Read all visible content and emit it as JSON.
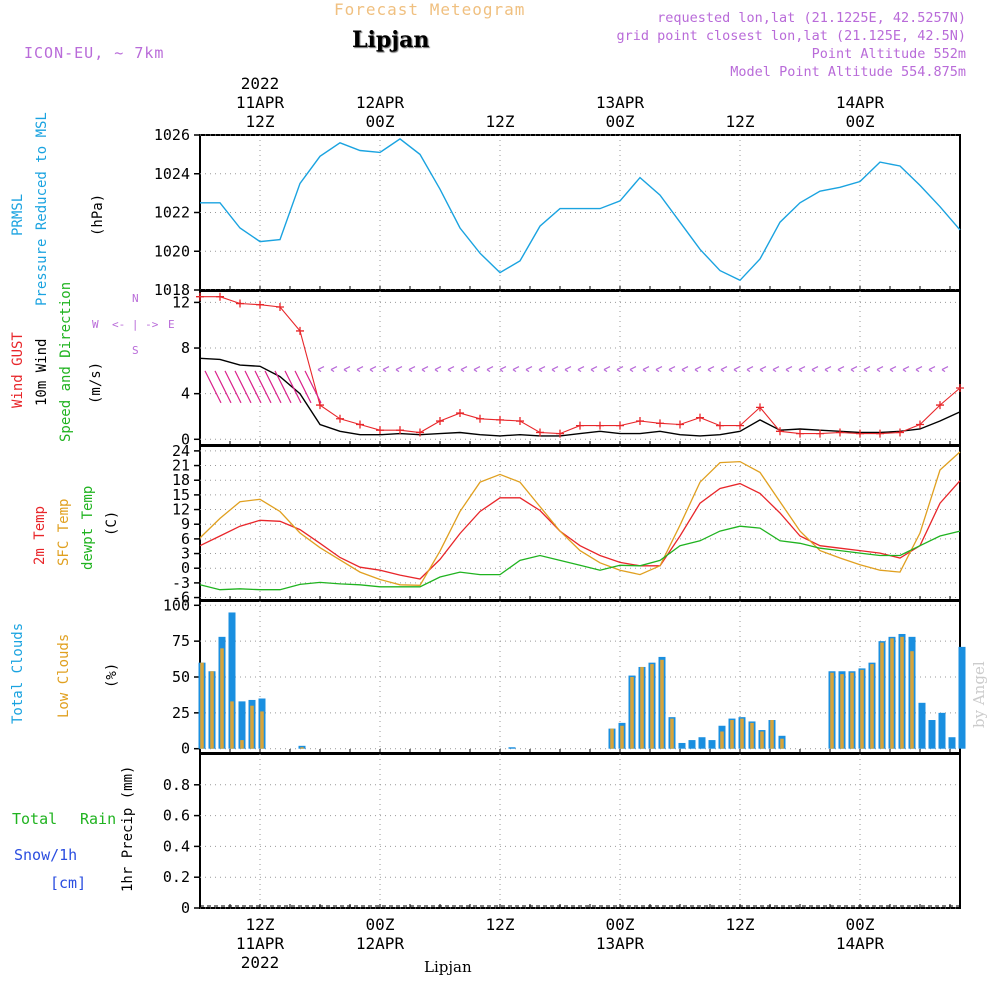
{
  "header": {
    "model": "ICON-EU, ~ 7km",
    "title": "Forecast Meteogram",
    "location": "Lipjan",
    "requested": "requested lon,lat (21.1225E, 42.5257N)",
    "gridpoint": "grid point closest lon,lat (21.125E, 42.5N)",
    "point_alt": "Point Altitude 552m",
    "model_alt": "Model Point Altitude 554.875m",
    "footer_location": "Lipjan",
    "watermark": "by Angel"
  },
  "time_axis": {
    "top": [
      "2022\n11APR\n12Z",
      "12APR\n00Z",
      "12Z",
      "13APR\n00Z",
      "12Z",
      "14APR\n00Z"
    ],
    "bottom": [
      "12Z\n11APR\n2022",
      "00Z\n12APR",
      "12Z",
      "00Z\n13APR",
      "12Z",
      "00Z\n14APR"
    ],
    "ticks_hours": [
      12,
      24,
      36,
      48,
      60,
      72
    ],
    "range_hours": [
      6,
      82
    ]
  },
  "panel_labels": {
    "pressure": [
      "PRMSL",
      "Pressure Reduced to MSL",
      "(hPa)"
    ],
    "wind": [
      "Wind GUST",
      "10m Wind",
      "Speed and Direction",
      "(m/s)"
    ],
    "compass": {
      "n": "N",
      "s": "S",
      "w": "W",
      "e": "E",
      "arrow": "<- | ->"
    },
    "temp": [
      "2m Temp",
      "SFC Temp",
      "dewpt Temp",
      "(C)"
    ],
    "cloud": [
      "Total Clouds",
      "Low Clouds",
      "(%)"
    ],
    "precip": [
      "Total",
      "Rain",
      "Snow/1h",
      "[cm]",
      "1hr Precip (mm)"
    ]
  },
  "colors": {
    "pressure": "#1aa3e0",
    "gust": "#e8262a",
    "wind10m": "#000000",
    "temp2m": "#e8262a",
    "tempsfc": "#e0a020",
    "dewpt": "#20b320",
    "total_clouds": "#1a8fe0",
    "low_clouds": "#d9a53a",
    "purple": "#b96bd9"
  },
  "chart_data": [
    {
      "type": "line",
      "name": "pressure",
      "title": "PRMSL Pressure Reduced to MSL",
      "ylabel": "(hPa)",
      "ylim": [
        1018,
        1026
      ],
      "yticks": [
        1018,
        1020,
        1022,
        1024,
        1026
      ],
      "x": [
        6,
        8,
        10,
        12,
        14,
        16,
        18,
        20,
        22,
        24,
        26,
        28,
        30,
        32,
        34,
        36,
        38,
        40,
        42,
        44,
        46,
        48,
        50,
        52,
        54,
        56,
        58,
        60,
        62,
        64,
        66,
        68,
        70,
        72,
        74,
        76,
        78,
        80,
        82
      ],
      "series": [
        {
          "name": "PRMSL",
          "values": [
            1022.5,
            1022.5,
            1021.2,
            1020.5,
            1020.6,
            1023.5,
            1024.9,
            1025.6,
            1025.2,
            1025.1,
            1025.8,
            1025,
            1023.2,
            1021.2,
            1019.9,
            1018.9,
            1019.5,
            1021.3,
            1022.2,
            1022.2,
            1022.2,
            1022.6,
            1023.8,
            1022.9,
            1021.5,
            1020.1,
            1019,
            1018.5,
            1019.6,
            1021.5,
            1022.5,
            1023.1,
            1023.3,
            1023.6,
            1024.6,
            1024.4,
            1023.4,
            1022.3,
            1021.1
          ]
        }
      ]
    },
    {
      "type": "line",
      "name": "wind",
      "title": "Wind GUST / 10m Wind",
      "ylabel": "(m/s)",
      "ylim": [
        -0.5,
        13
      ],
      "yticks": [
        0,
        4,
        8,
        12
      ],
      "x": [
        6,
        8,
        10,
        12,
        14,
        16,
        18,
        20,
        22,
        24,
        26,
        28,
        30,
        32,
        34,
        36,
        38,
        40,
        42,
        44,
        46,
        48,
        50,
        52,
        54,
        56,
        58,
        60,
        62,
        64,
        66,
        68,
        70,
        72,
        74,
        76,
        78,
        80,
        82
      ],
      "series": [
        {
          "name": "Wind GUST",
          "values": [
            12.5,
            12.5,
            11.9,
            11.8,
            11.6,
            9.5,
            3,
            1.8,
            1.3,
            0.8,
            0.8,
            0.6,
            1.6,
            2.3,
            1.8,
            1.7,
            1.6,
            0.6,
            0.5,
            1.2,
            1.2,
            1.2,
            1.6,
            1.4,
            1.3,
            1.9,
            1.2,
            1.2,
            2.8,
            0.7,
            0.5,
            0.5,
            0.6,
            0.5,
            0.5,
            0.6,
            1.3,
            3,
            4.5
          ]
        },
        {
          "name": "10m Wind",
          "values": [
            7.1,
            7,
            6.5,
            6.4,
            5.5,
            4,
            1.3,
            0.7,
            0.4,
            0.4,
            0.5,
            0.4,
            0.5,
            0.6,
            0.4,
            0.3,
            0.4,
            0.3,
            0.3,
            0.5,
            0.7,
            0.5,
            0.5,
            0.7,
            0.4,
            0.3,
            0.4,
            0.7,
            1.7,
            0.8,
            0.9,
            0.8,
            0.7,
            0.6,
            0.6,
            0.7,
            0.9,
            1.6,
            2.4
          ]
        }
      ]
    },
    {
      "type": "line",
      "name": "temperature",
      "title": "2m Temp / SFC Temp / dewpt Temp",
      "ylabel": "(C)",
      "ylim": [
        -6.5,
        25
      ],
      "yticks": [
        -6,
        -3,
        0,
        3,
        6,
        9,
        12,
        15,
        18,
        21,
        24
      ],
      "x": [
        6,
        8,
        10,
        12,
        14,
        16,
        18,
        20,
        22,
        24,
        26,
        28,
        30,
        32,
        34,
        36,
        38,
        40,
        42,
        44,
        46,
        48,
        50,
        52,
        54,
        56,
        58,
        60,
        62,
        64,
        66,
        68,
        70,
        72,
        74,
        76,
        78,
        80,
        82
      ],
      "series": [
        {
          "name": "2m Temp",
          "values": [
            4.6,
            6.6,
            8.6,
            9.8,
            9.6,
            7.9,
            5.1,
            2.2,
            0.2,
            -0.4,
            -1.4,
            -2.2,
            1.8,
            7.1,
            11.6,
            14.4,
            14.4,
            11.8,
            7.6,
            4.6,
            2.6,
            1.2,
            0.5,
            0.5,
            6.6,
            13.3,
            16.3,
            17.3,
            15.3,
            11.3,
            6.6,
            4.6,
            4.1,
            3.6,
            3.1,
            2.1,
            4.6,
            13.3,
            17.9
          ]
        },
        {
          "name": "SFC Temp",
          "values": [
            6.2,
            10.2,
            13.6,
            14.1,
            11.6,
            7.2,
            4.2,
            1.7,
            -0.8,
            -2.3,
            -3.4,
            -3.5,
            3.5,
            11.6,
            17.6,
            19.2,
            17.6,
            12.6,
            7.6,
            3.6,
            1.1,
            -0.4,
            -1.3,
            0.5,
            8.8,
            17.6,
            21.6,
            21.8,
            19.6,
            13.6,
            7.6,
            3.6,
            2.1,
            0.7,
            -0.4,
            -0.8,
            7.2,
            20.1,
            23.8
          ]
        },
        {
          "name": "dewpt Temp",
          "values": [
            -3.4,
            -4.4,
            -4.2,
            -4.4,
            -4.4,
            -3.3,
            -2.9,
            -3.2,
            -3.4,
            -3.8,
            -3.8,
            -3.8,
            -1.8,
            -0.8,
            -1.3,
            -1.3,
            1.6,
            2.6,
            1.6,
            0.6,
            -0.4,
            0.6,
            0.5,
            1.6,
            4.6,
            5.6,
            7.6,
            8.6,
            8.2,
            5.6,
            5.1,
            4.1,
            3.6,
            3.1,
            2.6,
            2.6,
            4.6,
            6.6,
            7.6
          ]
        }
      ]
    },
    {
      "type": "bar",
      "name": "clouds",
      "title": "Total Clouds / Low Clouds",
      "ylabel": "(%)",
      "ylim": [
        -3,
        103
      ],
      "yticks": [
        0,
        25,
        50,
        75,
        100
      ],
      "x": [
        6,
        7,
        8,
        9,
        10,
        11,
        12,
        13,
        14,
        15,
        16,
        17,
        18,
        19,
        20,
        21,
        22,
        23,
        24,
        25,
        26,
        27,
        28,
        29,
        30,
        31,
        32,
        33,
        34,
        35,
        36,
        37,
        38,
        39,
        40,
        41,
        42,
        43,
        44,
        45,
        46,
        47,
        48,
        49,
        50,
        51,
        52,
        53,
        54,
        55,
        56,
        57,
        58,
        59,
        60,
        61,
        62,
        63,
        64,
        65,
        66,
        67,
        68,
        69,
        70,
        71,
        72,
        73,
        74,
        75,
        76,
        77,
        78,
        79,
        80,
        81,
        82
      ],
      "series": [
        {
          "name": "Total Clouds",
          "values": [
            60,
            54,
            78,
            95,
            33,
            34,
            35,
            0,
            0,
            0,
            2,
            0,
            0,
            0,
            0,
            0,
            0,
            0,
            0,
            0,
            0,
            0,
            0,
            0,
            0,
            0,
            0,
            0,
            0,
            0,
            0,
            1,
            0,
            0,
            0,
            0,
            0,
            0,
            0,
            0,
            0,
            14,
            18,
            51,
            57,
            60,
            64,
            22,
            4,
            6,
            8,
            6,
            16,
            21,
            22,
            19,
            13,
            20,
            9,
            0,
            0,
            0,
            0,
            54,
            54,
            54,
            56,
            60,
            75,
            78,
            80,
            78,
            32,
            20,
            25,
            8,
            71
          ]
        },
        {
          "name": "Low Clouds",
          "values": [
            60,
            54,
            70,
            33,
            6,
            30,
            26,
            0,
            0,
            0,
            1,
            0,
            0,
            0,
            0,
            0,
            0,
            0,
            0,
            0,
            0,
            0,
            0,
            0,
            0,
            0,
            0,
            0,
            0,
            0,
            0,
            0,
            0,
            0,
            0,
            0,
            0,
            0,
            0,
            0,
            0,
            14,
            16,
            50,
            57,
            59,
            62,
            21,
            0,
            0,
            0,
            0,
            12,
            20,
            21,
            18,
            12,
            20,
            7,
            0,
            0,
            0,
            0,
            53,
            52,
            53,
            55,
            59,
            74,
            77,
            78,
            68,
            0,
            0,
            0,
            0,
            0
          ]
        }
      ]
    },
    {
      "type": "line",
      "name": "precip",
      "title": "1hr Precip",
      "ylabel": "1hr Precip (mm)",
      "ylim": [
        0,
        1
      ],
      "yticks": [
        0,
        0.2,
        0.4,
        0.6,
        0.8
      ],
      "x": [
        6,
        82
      ],
      "series": [
        {
          "name": "Total",
          "values": [
            0,
            0
          ]
        }
      ]
    }
  ]
}
